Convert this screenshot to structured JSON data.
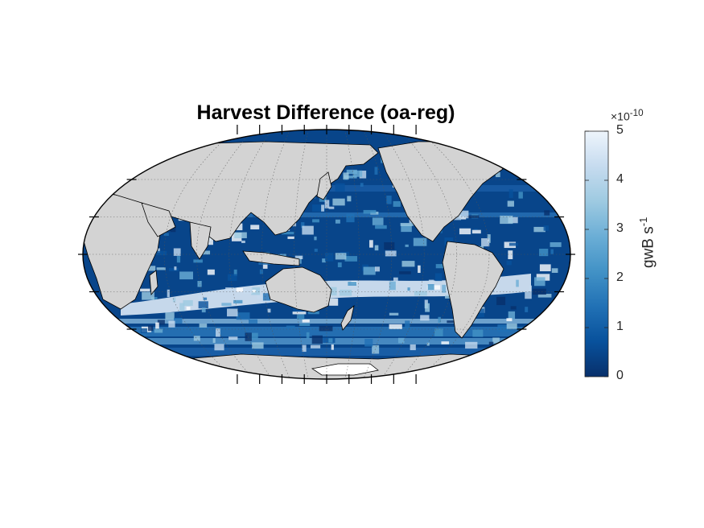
{
  "title": "Harvest Difference (oa-reg)",
  "colorbar": {
    "exponent_prefix": "×10",
    "exponent_power": "-10",
    "ticks": [
      {
        "label": "5",
        "value": 5
      },
      {
        "label": "4",
        "value": 4
      },
      {
        "label": "3",
        "value": 3
      },
      {
        "label": "2",
        "value": 2
      },
      {
        "label": "1",
        "value": 1
      },
      {
        "label": "0",
        "value": 0
      }
    ],
    "label_main": "gwB s",
    "label_power": "-1",
    "min": 0,
    "max": 5,
    "colors": [
      "#08306b",
      "#08519c",
      "#2171b5",
      "#4292c6",
      "#6baed6",
      "#9ecae1",
      "#c6dbef",
      "#eef5fc"
    ]
  },
  "map": {
    "projection": "Robinson",
    "land_color": "#d3d3d3",
    "ocean_low_color": "#08458a",
    "ocean_high_color": "#f2f7fd",
    "coastline_color": "#000000",
    "graticule_color": "#666666"
  }
}
